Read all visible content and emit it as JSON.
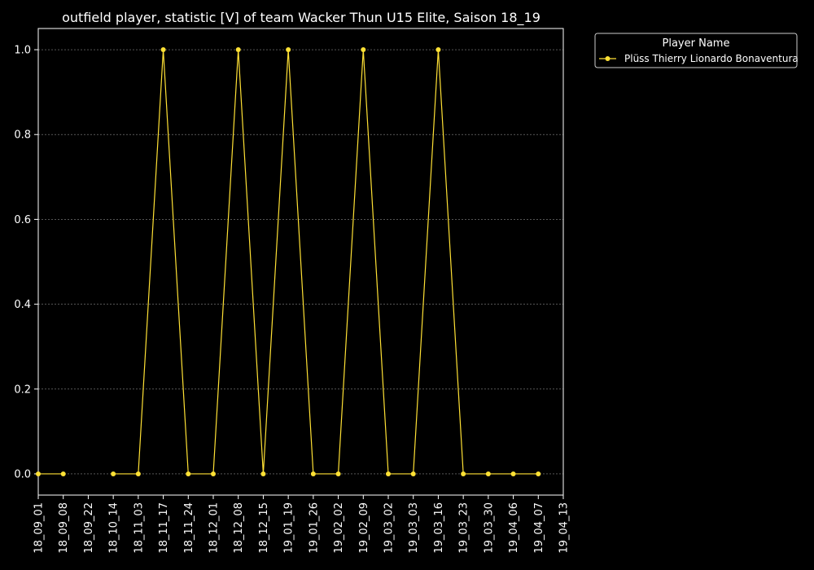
{
  "chart_data": {
    "type": "line",
    "title": "outfield player, statistic [V] of team Wacker Thun U15 Elite, Saison 18_19",
    "xlabel": "",
    "ylabel": "",
    "categories": [
      "18_09_01",
      "18_09_08",
      "18_09_22",
      "18_10_14",
      "18_11_03",
      "18_11_17",
      "18_11_24",
      "18_12_01",
      "18_12_08",
      "18_12_15",
      "19_01_19",
      "19_01_26",
      "19_02_02",
      "19_02_09",
      "19_03_02",
      "19_03_03",
      "19_03_16",
      "19_03_23",
      "19_03_30",
      "19_04_06",
      "19_04_07",
      "19_04_13"
    ],
    "ylim": [
      -0.05,
      1.05
    ],
    "yticks": [
      "0.0",
      "0.2",
      "0.4",
      "0.6",
      "0.8",
      "1.0"
    ],
    "ytick_values": [
      0.0,
      0.2,
      0.4,
      0.6,
      0.8,
      1.0
    ],
    "grid": "horizontal dashed",
    "legend": {
      "title": "Player Name",
      "placement": "outside-top-right"
    },
    "series": [
      {
        "name": "Plüss Thierry Lionardo Bonaventura",
        "color": "#ffe135",
        "values": [
          0,
          0,
          null,
          0,
          0,
          1,
          0,
          0,
          1,
          0,
          1,
          0,
          0,
          1,
          0,
          0,
          1,
          0,
          0,
          0,
          0,
          null
        ]
      }
    ]
  }
}
